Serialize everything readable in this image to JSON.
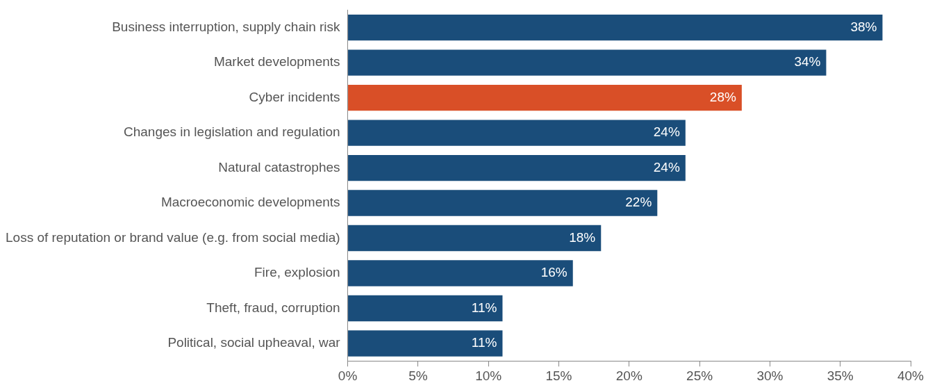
{
  "chart_data": {
    "type": "bar",
    "orientation": "horizontal",
    "categories": [
      "Business interruption, supply chain risk",
      "Market developments",
      "Cyber incidents",
      "Changes in legislation and regulation",
      "Natural catastrophes",
      "Macroeconomic developments",
      "Loss of reputation or brand value (e.g. from social media)",
      "Fire, explosion",
      "Theft, fraud, corruption",
      "Political, social upheaval, war"
    ],
    "values": [
      38,
      34,
      28,
      24,
      24,
      22,
      18,
      16,
      11,
      11
    ],
    "colors": [
      "#1a4d7a",
      "#1a4d7a",
      "#d94f27",
      "#1a4d7a",
      "#1a4d7a",
      "#1a4d7a",
      "#1a4d7a",
      "#1a4d7a",
      "#1a4d7a",
      "#1a4d7a"
    ],
    "value_labels": [
      "38%",
      "34%",
      "28%",
      "24%",
      "24%",
      "22%",
      "18%",
      "16%",
      "11%",
      "11%"
    ],
    "xlim": [
      0,
      40
    ],
    "xticks": [
      {
        "value": 0,
        "label": "0%"
      },
      {
        "value": 5,
        "label": "5%"
      },
      {
        "value": 10,
        "label": "10%"
      },
      {
        "value": 15,
        "label": "15%"
      },
      {
        "value": 20,
        "label": "20%"
      },
      {
        "value": 25,
        "label": "25%"
      },
      {
        "value": 30,
        "label": "30%"
      },
      {
        "value": 35,
        "label": "35%"
      },
      {
        "value": 40,
        "label": "40%"
      }
    ]
  }
}
